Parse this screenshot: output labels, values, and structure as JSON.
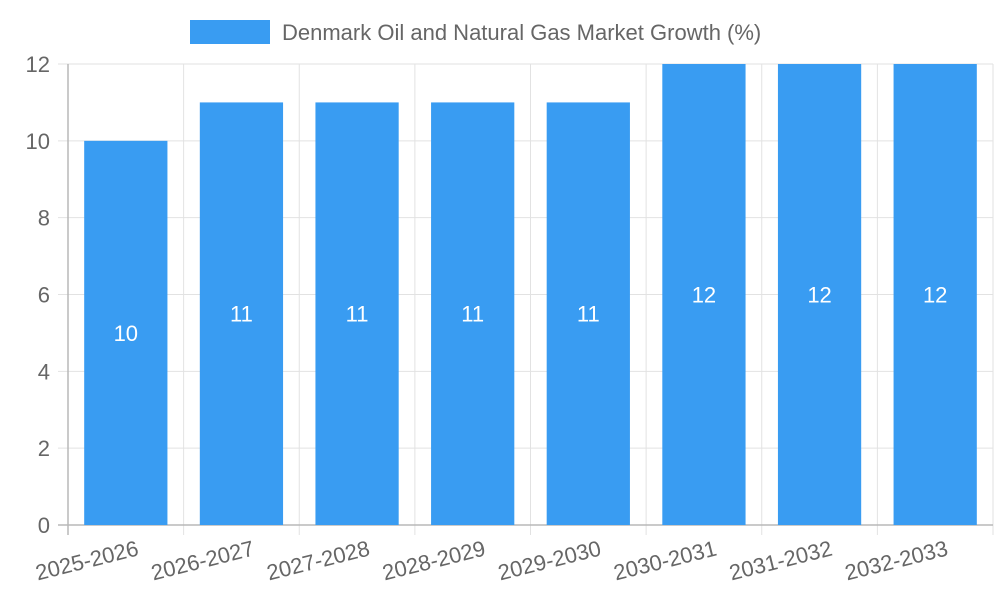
{
  "chart_data": {
    "type": "bar",
    "categories": [
      "2025-2026",
      "2026-2027",
      "2027-2028",
      "2028-2029",
      "2029-2030",
      "2030-2031",
      "2031-2032",
      "2032-2033"
    ],
    "series": [
      {
        "name": "Denmark Oil and Natural Gas Market Growth (%)",
        "values": [
          10,
          11,
          11,
          11,
          11,
          12,
          12,
          12
        ],
        "color": "#399cf2"
      }
    ],
    "title": "",
    "xlabel": "",
    "ylabel": "",
    "ylim": [
      0,
      12
    ],
    "yticks": [
      0,
      2,
      4,
      6,
      8,
      10,
      12
    ],
    "grid": true,
    "legend": "top-center",
    "data_labels": true
  }
}
